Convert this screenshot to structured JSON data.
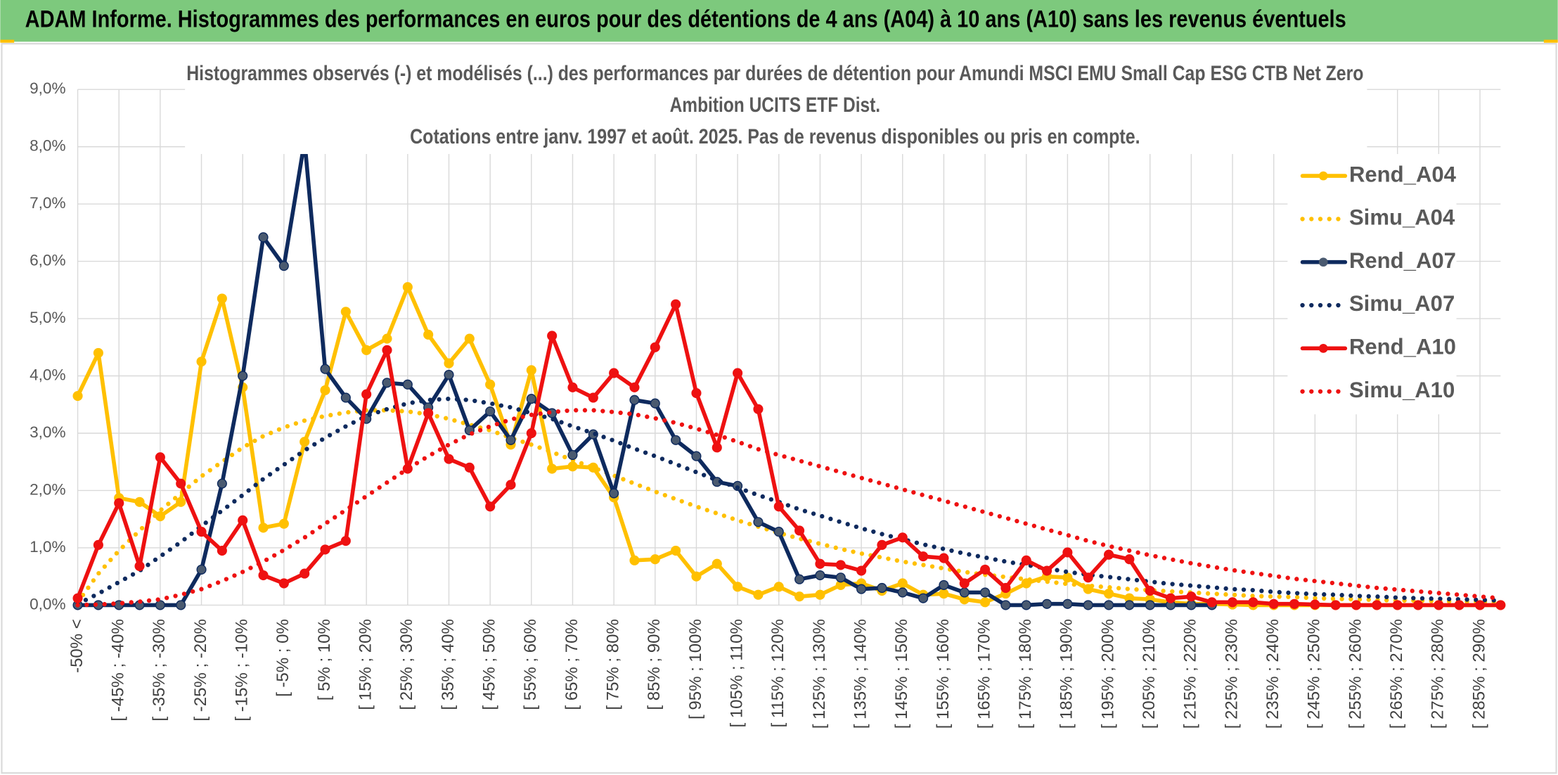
{
  "header": {
    "title": "ADAM Informe. Histogrammes des performances en euros pour des détentions de 4 ans (A04) à 10 ans (A10) sans les revenus éventuels"
  },
  "chart_data": {
    "type": "line",
    "title_lines": [
      "Histogrammes observés (-) et modélisés (...) des performances par durées de détention pour Amundi MSCI EMU Small Cap ESG CTB Net Zero",
      "Ambition UCITS ETF Dist.",
      "Cotations entre janv. 1997 et août. 2025. Pas de revenus disponibles ou pris en compte."
    ],
    "categories": [
      "-50% <",
      null,
      "[ -45% ; -40%",
      null,
      "[ -35% ; -30%",
      null,
      "[ -25% ; -20%",
      null,
      "[ -15% ; -10%",
      null,
      "[ -5% ; 0%",
      null,
      "[ 5% ; 10%",
      null,
      "[ 15% ; 20%",
      null,
      "[ 25% ; 30%",
      null,
      "[ 35% ; 40%",
      null,
      "[ 45% ; 50%",
      null,
      "[ 55% ; 60%",
      null,
      "[ 65% ; 70%",
      null,
      "[ 75% ; 80%",
      null,
      "[ 85% ; 90%",
      null,
      "[ 95% ; 100%",
      null,
      "[ 105% ; 110%",
      null,
      "[ 115% ; 120%",
      null,
      "[ 125% ; 130%",
      null,
      "[ 135% ; 140%",
      null,
      "[ 145% ; 150%",
      null,
      "[ 155% ; 160%",
      null,
      "[ 165% ; 170%",
      null,
      "[ 175% ; 180%",
      null,
      "[ 185% ; 190%",
      null,
      "[ 195% ; 200%",
      null,
      "[ 205% ; 210%",
      null,
      "[ 215% ; 220%",
      null,
      "[ 225% ; 230%",
      null,
      "[ 235% ; 240%",
      null,
      "[ 245% ; 250%",
      null,
      "[ 255% ; 260%",
      null,
      "[ 265% ; 270%",
      null,
      "[ 275% ; 280%",
      null,
      "[ 285% ; 290%",
      null
    ],
    "ylim": [
      0,
      9
    ],
    "yticks": [
      {
        "value": 0,
        "label": "0,0%"
      },
      {
        "value": 1,
        "label": "1,0%"
      },
      {
        "value": 2,
        "label": "2,0%"
      },
      {
        "value": 3,
        "label": "3,0%"
      },
      {
        "value": 4,
        "label": "4,0%"
      },
      {
        "value": 5,
        "label": "5,0%"
      },
      {
        "value": 6,
        "label": "6,0%"
      },
      {
        "value": 7,
        "label": "7,0%"
      },
      {
        "value": 8,
        "label": "8,0%"
      },
      {
        "value": 9,
        "label": "9,0%"
      }
    ],
    "grid": true,
    "legend": "right",
    "series": [
      {
        "name": "Rend_A04",
        "color": "#ffc000",
        "markers": true,
        "dash": "solid",
        "values": [
          3.65,
          4.4,
          1.87,
          1.8,
          1.55,
          1.8,
          4.25,
          5.35,
          3.8,
          1.35,
          1.42,
          2.85,
          3.75,
          5.12,
          4.45,
          4.65,
          5.55,
          4.72,
          4.22,
          4.65,
          3.85,
          2.8,
          4.1,
          2.38,
          2.42,
          2.4,
          1.88,
          0.78,
          0.8,
          0.95,
          0.5,
          0.72,
          0.32,
          0.18,
          0.32,
          0.15,
          0.18,
          0.35,
          0.38,
          0.25,
          0.38,
          0.18,
          0.2,
          0.1,
          0.05,
          0.2,
          0.38,
          0.5,
          0.48,
          0.28,
          0.2,
          0.12,
          0.1,
          0.05,
          0.02,
          0.02,
          0.01,
          0,
          0,
          0,
          0,
          0,
          0,
          0,
          0,
          0,
          0,
          0,
          0,
          0
        ]
      },
      {
        "name": "Simu_A04",
        "color": "#ffc000",
        "markers": false,
        "dash": "dotted",
        "values": [
          0.05,
          0.55,
          0.95,
          1.3,
          1.65,
          1.95,
          2.25,
          2.5,
          2.75,
          2.95,
          3.1,
          3.22,
          3.3,
          3.36,
          3.4,
          3.4,
          3.38,
          3.33,
          3.25,
          3.15,
          3.05,
          2.92,
          2.8,
          2.67,
          2.53,
          2.4,
          2.26,
          2.12,
          1.98,
          1.85,
          1.72,
          1.6,
          1.48,
          1.37,
          1.26,
          1.16,
          1.07,
          0.98,
          0.9,
          0.83,
          0.76,
          0.7,
          0.64,
          0.58,
          0.53,
          0.49,
          0.45,
          0.41,
          0.37,
          0.34,
          0.31,
          0.28,
          0.26,
          0.24,
          0.22,
          0.2,
          0.18,
          0.16,
          0.15,
          0.14,
          0.12,
          0.11,
          0.1,
          0.09,
          0.08,
          0.08,
          0.07,
          0.06,
          0.06,
          0.05
        ]
      },
      {
        "name": "Rend_A07",
        "color": "#0e2a5e",
        "markers": true,
        "dash": "solid",
        "values": [
          0,
          0,
          0,
          0,
          0,
          0,
          0.62,
          2.12,
          4.0,
          6.42,
          5.92,
          8.1,
          4.12,
          3.62,
          3.25,
          3.88,
          3.85,
          3.45,
          4.02,
          3.05,
          3.38,
          2.88,
          3.6,
          3.35,
          2.62,
          2.98,
          1.95,
          3.58,
          3.52,
          2.88,
          2.6,
          2.15,
          2.08,
          1.45,
          1.28,
          0.45,
          0.52,
          0.48,
          0.28,
          0.3,
          0.22,
          0.12,
          0.35,
          0.22,
          0.22,
          0,
          0,
          0.02,
          0.02,
          0,
          0,
          0,
          0,
          0,
          0,
          0,
          null,
          null,
          null,
          null,
          null,
          null,
          null,
          null,
          null,
          null,
          null,
          null,
          null,
          null
        ]
      },
      {
        "name": "Simu_A07",
        "color": "#0e2a5e",
        "markers": false,
        "dash": "dotted",
        "values": [
          0.02,
          0.2,
          0.4,
          0.6,
          0.85,
          1.1,
          1.38,
          1.65,
          1.92,
          2.2,
          2.45,
          2.7,
          2.92,
          3.12,
          3.3,
          3.42,
          3.52,
          3.58,
          3.6,
          3.58,
          3.52,
          3.45,
          3.35,
          3.25,
          3.12,
          3.0,
          2.87,
          2.73,
          2.6,
          2.46,
          2.32,
          2.18,
          2.05,
          1.92,
          1.8,
          1.67,
          1.56,
          1.45,
          1.34,
          1.24,
          1.15,
          1.06,
          0.98,
          0.9,
          0.83,
          0.76,
          0.7,
          0.64,
          0.58,
          0.53,
          0.49,
          0.45,
          0.41,
          0.37,
          0.34,
          0.31,
          0.28,
          0.26,
          0.23,
          0.21,
          0.19,
          0.18,
          0.16,
          0.15,
          0.13,
          0.12,
          0.11,
          0.1,
          0.09,
          0.08
        ]
      },
      {
        "name": "Rend_A10",
        "color": "#ee1111",
        "markers": true,
        "dash": "solid",
        "values": [
          0.12,
          1.05,
          1.78,
          0.68,
          2.58,
          2.12,
          1.28,
          0.95,
          1.48,
          0.52,
          0.38,
          0.55,
          0.97,
          1.12,
          3.68,
          4.45,
          2.38,
          3.35,
          2.55,
          2.4,
          1.72,
          2.1,
          3.0,
          4.7,
          3.8,
          3.62,
          4.05,
          3.8,
          4.5,
          5.25,
          3.7,
          2.75,
          4.05,
          3.42,
          1.72,
          1.3,
          0.72,
          0.7,
          0.6,
          1.05,
          1.18,
          0.85,
          0.82,
          0.38,
          0.62,
          0.3,
          0.78,
          0.6,
          0.92,
          0.48,
          0.88,
          0.8,
          0.25,
          0.12,
          0.15,
          0.05,
          0.05,
          0.05,
          0.02,
          0.02,
          0.01,
          0,
          0,
          0,
          0,
          0,
          0,
          0,
          0,
          0
        ]
      },
      {
        "name": "Simu_A10",
        "color": "#ee1111",
        "markers": false,
        "dash": "dotted",
        "values": [
          0,
          0.01,
          0.03,
          0.06,
          0.1,
          0.18,
          0.28,
          0.42,
          0.58,
          0.76,
          0.96,
          1.18,
          1.42,
          1.66,
          1.9,
          2.14,
          2.38,
          2.6,
          2.8,
          2.98,
          3.12,
          3.24,
          3.32,
          3.37,
          3.4,
          3.4,
          3.37,
          3.33,
          3.26,
          3.18,
          3.08,
          2.97,
          2.85,
          2.72,
          2.62,
          2.52,
          2.42,
          2.32,
          2.22,
          2.12,
          2.02,
          1.92,
          1.82,
          1.72,
          1.62,
          1.52,
          1.42,
          1.32,
          1.22,
          1.12,
          1.03,
          0.95,
          0.87,
          0.8,
          0.73,
          0.67,
          0.61,
          0.56,
          0.51,
          0.46,
          0.42,
          0.38,
          0.34,
          0.3,
          0.27,
          0.24,
          0.21,
          0.18,
          0.15,
          0.12
        ]
      }
    ]
  }
}
